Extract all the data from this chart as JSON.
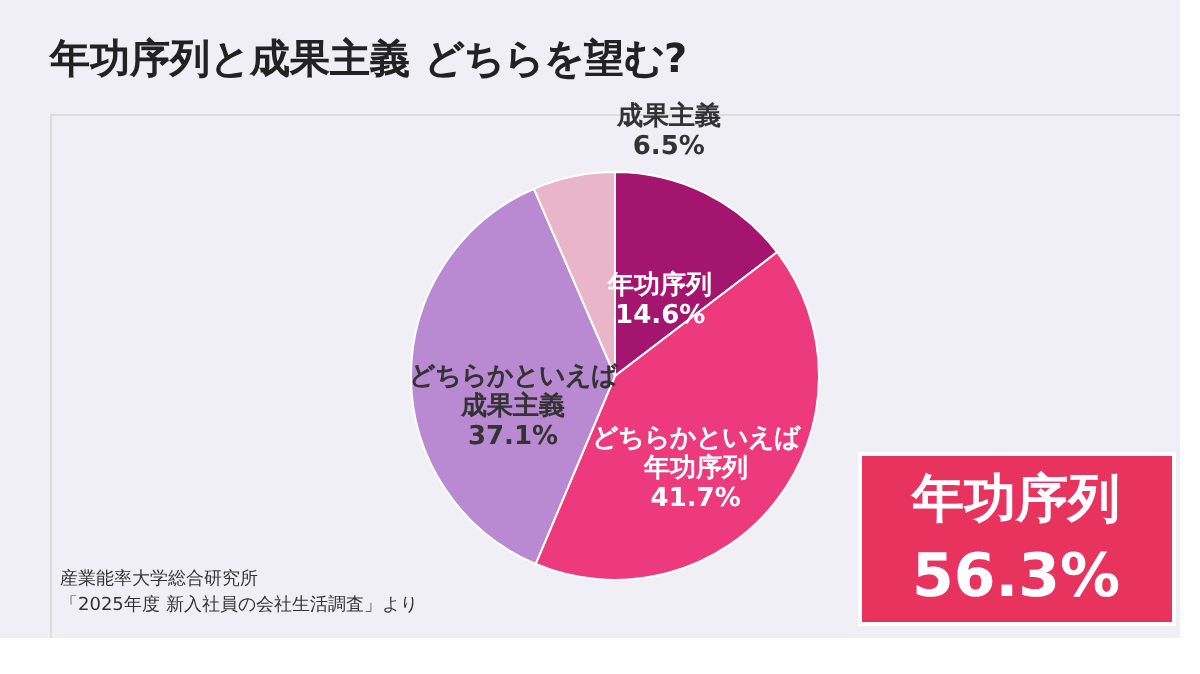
{
  "chart_data": {
    "type": "pie",
    "title": "年功序列と成果主義 どちらを望む?",
    "categories": [
      "年功序列",
      "どちらかといえば年功序列",
      "どちらかといえば成果主義",
      "成果主義"
    ],
    "values": [
      14.6,
      41.7,
      37.1,
      6.5
    ],
    "value_labels": [
      "14.6%",
      "41.7%",
      "37.1%",
      "6.5%"
    ],
    "colors": [
      "#a3156f",
      "#ec3a7c",
      "#b98ad2",
      "#e9b6c9"
    ],
    "legend": false,
    "annotations": [
      "年功序列",
      "56.3%",
      "産業能率大学総合研究所",
      "「2025年度 新入社員の会社生活調査」より"
    ]
  }
}
